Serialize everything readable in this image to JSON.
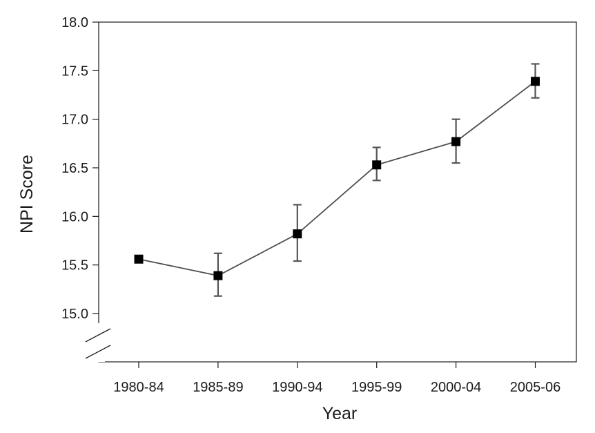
{
  "chart_data": {
    "type": "line",
    "title": "",
    "xlabel": "Year",
    "ylabel": "NPI Score",
    "categories": [
      "1980-84",
      "1985-89",
      "1990-94",
      "1995-99",
      "2000-04",
      "2005-06"
    ],
    "series": [
      {
        "values": [
          15.56,
          15.39,
          15.82,
          16.53,
          16.77,
          17.39
        ],
        "error_low": [
          null,
          15.18,
          15.54,
          16.37,
          16.55,
          17.22
        ],
        "error_high": [
          null,
          15.62,
          16.12,
          16.71,
          17.0,
          17.57
        ]
      }
    ],
    "ylim": [
      15.0,
      18.0
    ],
    "yticks": [
      "15.0",
      "15.5",
      "16.0",
      "16.5",
      "17.0",
      "17.5",
      "18.0"
    ],
    "y_axis_break": true,
    "grid": false,
    "legend": "none",
    "colors": {
      "line": "#4d4d4d",
      "marker": "#000000",
      "error_bar": "#555555",
      "axis": "#1a1a1a"
    }
  }
}
